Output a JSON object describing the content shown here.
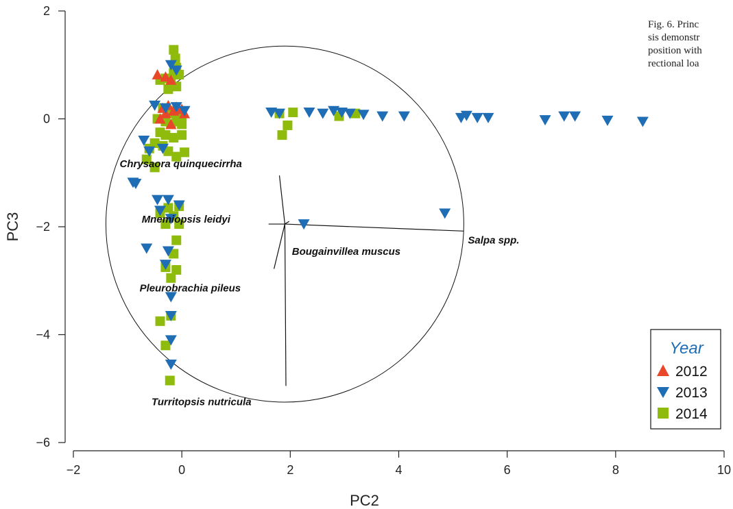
{
  "caption": {
    "lines": [
      "Fig. 6. Princ",
      "sis demonstr",
      "position with",
      "rectional loa"
    ]
  },
  "chart_data": {
    "type": "scatter",
    "xlabel": "PC2",
    "ylabel": "PC3",
    "xlim": [
      -2,
      10
    ],
    "ylim": [
      -6,
      2
    ],
    "xticks": [
      -2,
      0,
      2,
      4,
      6,
      8,
      10
    ],
    "yticks": [
      -6,
      -4,
      -2,
      0,
      2
    ],
    "grid": false,
    "legend": {
      "title": "Year",
      "placement": "bottom-right"
    },
    "circle": {
      "center": [
        1.9,
        -1.95
      ],
      "radius": 3.3
    },
    "loadings": [
      {
        "name": "Chrysaora quinquecirrha",
        "x": 1.8,
        "y": -1.05
      },
      {
        "name": "Mnemiopsis leidyi",
        "x": 1.6,
        "y": -1.95
      },
      {
        "name": "Salpa spp.",
        "x": 5.2,
        "y": -2.08
      },
      {
        "name": "Bougainvillea muscus",
        "x": 1.98,
        "y": -1.9
      },
      {
        "name": "Pleurobrachia pileus",
        "x": 1.7,
        "y": -2.78
      },
      {
        "name": "Turritopsis nutricula",
        "x": 1.92,
        "y": -4.95
      }
    ],
    "series": [
      {
        "name": "2012",
        "marker": "triangle-up",
        "color": "#e8472a",
        "points": [
          [
            -0.45,
            0.82
          ],
          [
            -0.3,
            0.78
          ],
          [
            -0.2,
            0.72
          ],
          [
            -0.35,
            0.2
          ],
          [
            -0.25,
            0.25
          ],
          [
            -0.15,
            0.15
          ],
          [
            0.0,
            0.18
          ],
          [
            0.05,
            0.1
          ],
          [
            -0.4,
            0.0
          ],
          [
            -0.2,
            -0.1
          ],
          [
            -0.1,
            0.22
          ],
          [
            -0.3,
            0.1
          ]
        ]
      },
      {
        "name": "2013",
        "marker": "triangle-down",
        "color": "#1f6eb5",
        "points": [
          [
            -0.5,
            0.25
          ],
          [
            -0.3,
            0.2
          ],
          [
            -0.1,
            0.22
          ],
          [
            0.05,
            0.15
          ],
          [
            -0.2,
            1.0
          ],
          [
            -0.1,
            0.9
          ],
          [
            -0.7,
            -0.4
          ],
          [
            -0.35,
            -0.55
          ],
          [
            -0.6,
            -0.6
          ],
          [
            -0.85,
            -1.2
          ],
          [
            -0.9,
            -1.18
          ],
          [
            -0.45,
            -1.5
          ],
          [
            -0.25,
            -1.5
          ],
          [
            -0.4,
            -1.7
          ],
          [
            -0.2,
            -1.85
          ],
          [
            -0.05,
            -1.6
          ],
          [
            -0.65,
            -2.4
          ],
          [
            -0.25,
            -2.45
          ],
          [
            -0.2,
            -3.3
          ],
          [
            -0.2,
            -3.65
          ],
          [
            -0.2,
            -4.1
          ],
          [
            -0.2,
            -4.55
          ],
          [
            -0.3,
            -2.7
          ],
          [
            1.65,
            0.12
          ],
          [
            1.8,
            0.1
          ],
          [
            2.35,
            0.12
          ],
          [
            2.6,
            0.1
          ],
          [
            2.8,
            0.15
          ],
          [
            2.95,
            0.12
          ],
          [
            3.1,
            0.1
          ],
          [
            3.35,
            0.08
          ],
          [
            3.7,
            0.05
          ],
          [
            4.1,
            0.05
          ],
          [
            5.15,
            0.02
          ],
          [
            5.25,
            0.06
          ],
          [
            5.45,
            0.02
          ],
          [
            5.65,
            0.02
          ],
          [
            6.7,
            -0.02
          ],
          [
            7.05,
            0.05
          ],
          [
            7.25,
            0.05
          ],
          [
            7.85,
            -0.03
          ],
          [
            8.5,
            -0.05
          ],
          [
            4.85,
            -1.75
          ],
          [
            2.25,
            -1.95
          ]
        ]
      },
      {
        "name": "2014",
        "marker": "square",
        "color": "#8fbc0c",
        "points": [
          [
            -0.15,
            1.28
          ],
          [
            -0.12,
            1.12
          ],
          [
            -0.1,
            0.95
          ],
          [
            -0.15,
            0.85
          ],
          [
            -0.05,
            0.82
          ],
          [
            -0.3,
            0.75
          ],
          [
            -0.2,
            0.68
          ],
          [
            -0.1,
            0.6
          ],
          [
            -0.25,
            0.55
          ],
          [
            -0.4,
            0.72
          ],
          [
            -0.35,
            0.2
          ],
          [
            -0.25,
            0.15
          ],
          [
            -0.15,
            0.1
          ],
          [
            -0.05,
            0.12
          ],
          [
            0.0,
            0.05
          ],
          [
            -0.45,
            0.0
          ],
          [
            -0.3,
            -0.05
          ],
          [
            -0.2,
            -0.1
          ],
          [
            -0.1,
            -0.05
          ],
          [
            0.0,
            -0.1
          ],
          [
            -0.4,
            -0.25
          ],
          [
            -0.3,
            -0.3
          ],
          [
            -0.15,
            -0.35
          ],
          [
            0.0,
            -0.3
          ],
          [
            -0.5,
            -0.45
          ],
          [
            -0.6,
            -0.55
          ],
          [
            -0.25,
            -0.6
          ],
          [
            0.05,
            -0.62
          ],
          [
            -0.65,
            -0.75
          ],
          [
            -0.5,
            -0.9
          ],
          [
            -0.35,
            -0.5
          ],
          [
            -0.1,
            -0.7
          ],
          [
            -0.25,
            -1.65
          ],
          [
            -0.05,
            -1.62
          ],
          [
            -0.15,
            -1.8
          ],
          [
            -0.4,
            -1.75
          ],
          [
            -0.3,
            -1.95
          ],
          [
            -0.05,
            -1.95
          ],
          [
            -0.1,
            -2.25
          ],
          [
            -0.15,
            -2.5
          ],
          [
            -0.3,
            -2.75
          ],
          [
            -0.2,
            -2.95
          ],
          [
            -0.1,
            -2.8
          ],
          [
            -0.4,
            -3.75
          ],
          [
            -0.2,
            -3.65
          ],
          [
            -0.3,
            -4.2
          ],
          [
            -0.22,
            -4.85
          ],
          [
            1.85,
            -0.3
          ],
          [
            1.95,
            -0.12
          ],
          [
            1.8,
            0.1
          ],
          [
            2.05,
            0.12
          ],
          [
            2.9,
            0.05
          ],
          [
            3.2,
            0.1
          ]
        ]
      }
    ]
  }
}
